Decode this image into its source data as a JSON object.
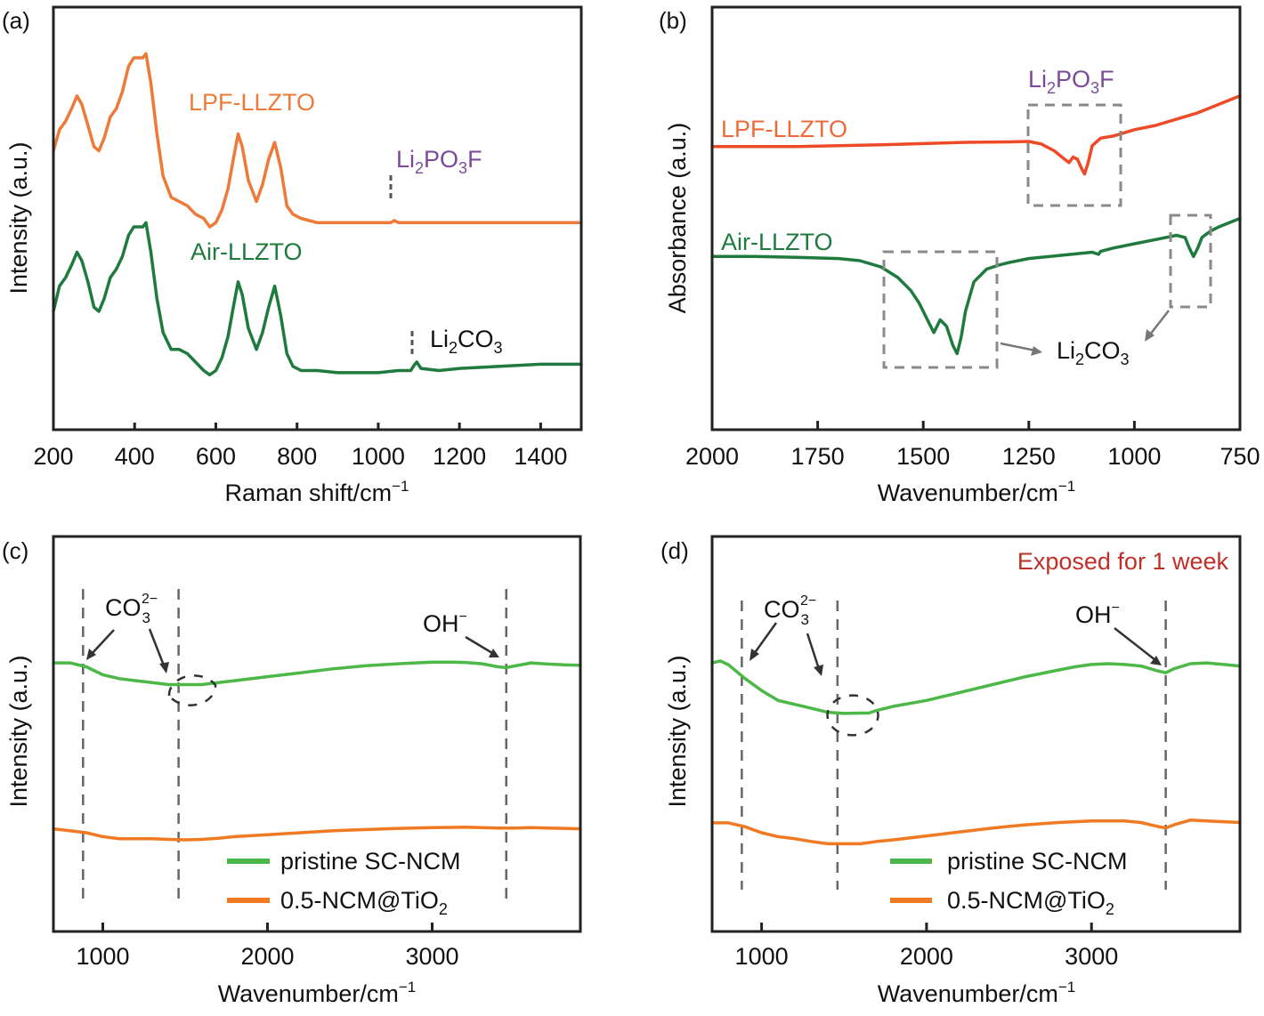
{
  "chart_data": [
    {
      "id": "a",
      "panel_label": "(a)",
      "type": "line",
      "xlabel": "Raman shift/cm",
      "xlabel_sup": "−1",
      "ylabel": "Intensity (a.u.)",
      "xlim": [
        200,
        1500
      ],
      "x_reversed": false,
      "xticks": [
        200,
        400,
        600,
        800,
        1000,
        1200,
        1400
      ],
      "ylim": [
        0,
        1
      ],
      "grid": false,
      "series": [
        {
          "name": "LPF-LLZTO",
          "color": "#ee7a3a",
          "x": [
            200,
            215,
            230,
            245,
            258,
            270,
            285,
            300,
            312,
            325,
            340,
            355,
            370,
            385,
            398,
            410,
            420,
            428,
            440,
            455,
            470,
            490,
            510,
            530,
            550,
            570,
            585,
            600,
            615,
            630,
            645,
            655,
            665,
            680,
            700,
            715,
            730,
            745,
            760,
            775,
            790,
            810,
            850,
            900,
            950,
            1000,
            1030,
            1040,
            1050,
            1070,
            1100,
            1200,
            1300,
            1400,
            1500
          ],
          "y": [
            0.66,
            0.71,
            0.73,
            0.76,
            0.79,
            0.77,
            0.72,
            0.67,
            0.66,
            0.69,
            0.74,
            0.76,
            0.8,
            0.86,
            0.88,
            0.88,
            0.88,
            0.89,
            0.82,
            0.7,
            0.6,
            0.55,
            0.54,
            0.53,
            0.51,
            0.5,
            0.48,
            0.49,
            0.52,
            0.57,
            0.65,
            0.7,
            0.67,
            0.59,
            0.54,
            0.58,
            0.64,
            0.68,
            0.62,
            0.53,
            0.51,
            0.5,
            0.49,
            0.49,
            0.49,
            0.49,
            0.49,
            0.495,
            0.49,
            0.49,
            0.49,
            0.49,
            0.49,
            0.49,
            0.49
          ]
        },
        {
          "name": "Air-LLZTO",
          "color": "#1f7a3e",
          "x": [
            200,
            215,
            230,
            245,
            258,
            270,
            285,
            300,
            312,
            325,
            340,
            355,
            370,
            385,
            398,
            410,
            420,
            428,
            440,
            455,
            470,
            490,
            510,
            530,
            550,
            570,
            585,
            600,
            615,
            630,
            645,
            655,
            665,
            680,
            700,
            715,
            730,
            745,
            760,
            775,
            790,
            810,
            850,
            900,
            950,
            1000,
            1050,
            1080,
            1090,
            1095,
            1105,
            1150,
            1200,
            1300,
            1400,
            1500
          ],
          "y": [
            0.28,
            0.34,
            0.36,
            0.39,
            0.42,
            0.4,
            0.35,
            0.29,
            0.28,
            0.31,
            0.36,
            0.38,
            0.41,
            0.46,
            0.48,
            0.48,
            0.48,
            0.49,
            0.42,
            0.31,
            0.23,
            0.19,
            0.19,
            0.18,
            0.16,
            0.14,
            0.13,
            0.14,
            0.17,
            0.22,
            0.3,
            0.35,
            0.32,
            0.24,
            0.19,
            0.23,
            0.29,
            0.34,
            0.27,
            0.18,
            0.15,
            0.14,
            0.14,
            0.135,
            0.135,
            0.135,
            0.14,
            0.14,
            0.155,
            0.16,
            0.145,
            0.14,
            0.145,
            0.15,
            0.155,
            0.155
          ]
        }
      ],
      "annotations": [
        {
          "text": "LPF-LLZTO",
          "color": "#ee7a3a"
        },
        {
          "text": "Li2PO3F",
          "color": "#7a4a9a",
          "marker_x": 1040
        },
        {
          "text": "Air-LLZTO",
          "color": "#1f7a3e"
        },
        {
          "text": "Li2CO3",
          "color": "#111111",
          "marker_x": 1090
        }
      ]
    },
    {
      "id": "b",
      "panel_label": "(b)",
      "type": "line",
      "xlabel": "Wavenumber/cm",
      "xlabel_sup": "−1",
      "ylabel": "Absorbance (a.u.)",
      "xlim": [
        2000,
        750
      ],
      "x_reversed": true,
      "xticks": [
        2000,
        1750,
        1500,
        1250,
        1000,
        750
      ],
      "ylim": [
        0,
        1
      ],
      "grid": false,
      "series": [
        {
          "name": "LPF-LLZTO",
          "color": "#ee4a28",
          "x": [
            2000,
            1900,
            1800,
            1700,
            1600,
            1500,
            1400,
            1300,
            1250,
            1220,
            1190,
            1165,
            1155,
            1145,
            1135,
            1125,
            1118,
            1110,
            1100,
            1080,
            1050,
            1000,
            950,
            900,
            850,
            800,
            750
          ],
          "y": [
            0.67,
            0.67,
            0.67,
            0.672,
            0.674,
            0.677,
            0.68,
            0.681,
            0.682,
            0.676,
            0.66,
            0.64,
            0.632,
            0.645,
            0.64,
            0.618,
            0.605,
            0.63,
            0.672,
            0.69,
            0.695,
            0.71,
            0.72,
            0.735,
            0.75,
            0.77,
            0.79
          ]
        },
        {
          "name": "Air-LLZTO",
          "color": "#1f7a3e",
          "x": [
            2000,
            1900,
            1800,
            1700,
            1650,
            1600,
            1560,
            1530,
            1510,
            1490,
            1475,
            1460,
            1445,
            1430,
            1420,
            1410,
            1400,
            1380,
            1350,
            1320,
            1300,
            1250,
            1200,
            1150,
            1100,
            1085,
            1080,
            1050,
            1000,
            950,
            900,
            880,
            870,
            860,
            850,
            840,
            820,
            800,
            750
          ],
          "y": [
            0.41,
            0.41,
            0.408,
            0.405,
            0.4,
            0.385,
            0.36,
            0.33,
            0.3,
            0.26,
            0.23,
            0.26,
            0.245,
            0.2,
            0.18,
            0.22,
            0.28,
            0.35,
            0.38,
            0.39,
            0.395,
            0.405,
            0.41,
            0.415,
            0.42,
            0.415,
            0.422,
            0.43,
            0.44,
            0.45,
            0.46,
            0.455,
            0.43,
            0.41,
            0.43,
            0.455,
            0.47,
            0.48,
            0.5
          ]
        }
      ],
      "annotations": [
        {
          "text": "LPF-LLZTO",
          "color": "#ee6a38"
        },
        {
          "text": "Li2PO3F",
          "color": "#7a4a9a",
          "box_x": [
            1255,
            1030
          ]
        },
        {
          "text": "Air-LLZTO",
          "color": "#1f7a3e"
        },
        {
          "text": "Li2CO3",
          "color": "#111111",
          "box_x": [
            1600,
            1330
          ]
        },
        {
          "text": "",
          "color": "#888888",
          "box_x": [
            910,
            820
          ]
        }
      ]
    },
    {
      "id": "c",
      "panel_label": "(c)",
      "type": "line",
      "xlabel": "Wavenumber/cm",
      "xlabel_sup": "−1",
      "ylabel": "Intensity (a.u.)",
      "xlim": [
        700,
        3900
      ],
      "x_reversed": false,
      "xticks": [
        1000,
        2000,
        3000
      ],
      "ylim": [
        0,
        1
      ],
      "grid": false,
      "series": [
        {
          "name": "pristine SC-NCM",
          "color": "#4cb847",
          "x": [
            700,
            800,
            900,
            1000,
            1100,
            1200,
            1300,
            1400,
            1500,
            1600,
            1700,
            1800,
            2000,
            2200,
            2400,
            2600,
            2800,
            2900,
            3000,
            3100,
            3200,
            3300,
            3400,
            3450,
            3500,
            3600,
            3700,
            3800,
            3900
          ],
          "y": [
            0.68,
            0.68,
            0.67,
            0.65,
            0.64,
            0.635,
            0.63,
            0.625,
            0.625,
            0.625,
            0.63,
            0.635,
            0.645,
            0.655,
            0.665,
            0.673,
            0.678,
            0.68,
            0.682,
            0.682,
            0.681,
            0.678,
            0.67,
            0.668,
            0.672,
            0.68,
            0.677,
            0.675,
            0.674
          ]
        },
        {
          "name": "0.5-NCM@TiO2",
          "color": "#ef7a22",
          "x": [
            700,
            800,
            900,
            1000,
            1100,
            1200,
            1300,
            1400,
            1500,
            1600,
            1700,
            1800,
            2000,
            2200,
            2400,
            2600,
            2800,
            3000,
            3200,
            3400,
            3500,
            3600,
            3700,
            3800,
            3900
          ],
          "y": [
            0.26,
            0.255,
            0.25,
            0.24,
            0.235,
            0.235,
            0.235,
            0.233,
            0.232,
            0.233,
            0.236,
            0.24,
            0.245,
            0.25,
            0.255,
            0.258,
            0.261,
            0.263,
            0.264,
            0.262,
            0.262,
            0.263,
            0.262,
            0.261,
            0.26
          ]
        }
      ],
      "annotations": [
        {
          "text": "CO3",
          "sub": "3",
          "sup": "2−",
          "color": "#111111",
          "dashed_x": [
            880,
            1460
          ]
        },
        {
          "text": "OH",
          "sup": "−",
          "color": "#111111",
          "dashed_x": [
            3450
          ]
        }
      ],
      "legend": {
        "position": "bottom-center",
        "entries": [
          "pristine SC-NCM",
          "0.5-NCM@TiO2"
        ]
      }
    },
    {
      "id": "d",
      "panel_label": "(d)",
      "type": "line",
      "title": "Exposed for 1 week",
      "title_color": "#c0302a",
      "xlabel": "Wavenumber/cm",
      "xlabel_sup": "−1",
      "ylabel": "Intensity (a.u.)",
      "xlim": [
        700,
        3900
      ],
      "x_reversed": false,
      "xticks": [
        1000,
        2000,
        3000
      ],
      "ylim": [
        0,
        1
      ],
      "grid": false,
      "series": [
        {
          "name": "pristine SC-NCM",
          "color": "#4cb847",
          "x": [
            700,
            750,
            800,
            900,
            1000,
            1100,
            1200,
            1300,
            1400,
            1500,
            1600,
            1650,
            1700,
            1800,
            2000,
            2200,
            2400,
            2600,
            2800,
            2900,
            3000,
            3100,
            3200,
            3300,
            3400,
            3450,
            3500,
            3600,
            3700,
            3800,
            3900
          ],
          "y": [
            0.68,
            0.685,
            0.675,
            0.64,
            0.61,
            0.585,
            0.575,
            0.565,
            0.555,
            0.552,
            0.553,
            0.553,
            0.56,
            0.57,
            0.585,
            0.605,
            0.625,
            0.645,
            0.662,
            0.67,
            0.676,
            0.678,
            0.676,
            0.672,
            0.66,
            0.655,
            0.665,
            0.678,
            0.68,
            0.676,
            0.672
          ]
        },
        {
          "name": "0.5-NCM@TiO2",
          "color": "#ef7a22",
          "x": [
            700,
            800,
            900,
            1000,
            1100,
            1200,
            1300,
            1400,
            1500,
            1600,
            1700,
            1800,
            2000,
            2200,
            2400,
            2600,
            2800,
            2900,
            3000,
            3100,
            3200,
            3300,
            3400,
            3450,
            3500,
            3600,
            3700,
            3800,
            3900
          ],
          "y": [
            0.275,
            0.275,
            0.265,
            0.25,
            0.24,
            0.235,
            0.228,
            0.222,
            0.222,
            0.222,
            0.228,
            0.232,
            0.242,
            0.252,
            0.262,
            0.27,
            0.276,
            0.278,
            0.28,
            0.28,
            0.28,
            0.276,
            0.266,
            0.262,
            0.27,
            0.282,
            0.28,
            0.278,
            0.276
          ]
        }
      ],
      "annotations": [
        {
          "text": "CO3",
          "sub": "3",
          "sup": "2−",
          "color": "#111111",
          "dashed_x": [
            880,
            1460
          ]
        },
        {
          "text": "OH",
          "sup": "−",
          "color": "#111111",
          "dashed_x": [
            3450
          ]
        }
      ],
      "legend": {
        "position": "bottom-center",
        "entries": [
          "pristine SC-NCM",
          "0.5-NCM@TiO2"
        ]
      }
    }
  ],
  "labels": {
    "a_lpf": "LPF-LLZTO",
    "a_air": "Air-LLZTO",
    "b_lpf": "LPF-LLZTO",
    "b_air": "Air-LLZTO",
    "li_prefix": "Li",
    "sub2": "2",
    "sub3": "3",
    "po": "PO",
    "f": "F",
    "co": "CO",
    "co3_sup": "2−",
    "oh": "OH",
    "oh_sup": "−",
    "legend_pristine": "pristine SC-NCM",
    "legend_tio2_prefix": "0.5-NCM@TiO",
    "exposed": "Exposed for 1 week"
  }
}
